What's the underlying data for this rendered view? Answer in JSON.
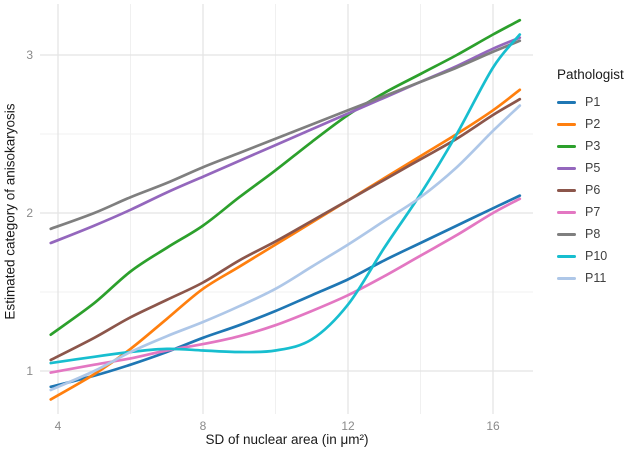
{
  "figure": {
    "x_axis_title": "SD of nuclear area (in μm²)",
    "y_axis_title": "Estimated category of anisokaryosis",
    "legend_title": "Pathologist"
  },
  "colors": {
    "grid_major": "#e4e4e4",
    "grid_minor": "#f0f0f0",
    "tick_text": "#8a8a8a",
    "title_text": "#1a1a1a",
    "background": "#ffffff"
  },
  "chart_data": {
    "type": "line",
    "title": "",
    "xlabel": "SD of nuclear area (in μm²)",
    "ylabel": "Estimated category of anisokaryosis",
    "legend_title": "Pathologist",
    "legend_position": "right",
    "grid": true,
    "xlim": [
      3.5,
      17.1
    ],
    "ylim": [
      0.73,
      3.33
    ],
    "x_ticks": [
      4,
      8,
      12,
      16
    ],
    "y_ticks": [
      1,
      2,
      3
    ],
    "x_minor_ticks": [
      6,
      10,
      14
    ],
    "y_minor_ticks": [
      1.5,
      2.5
    ],
    "x": [
      3.8,
      5,
      6,
      7,
      8,
      9,
      10,
      11,
      12,
      13,
      14,
      15,
      16,
      16.74
    ],
    "series": [
      {
        "name": "P1",
        "color": "#1f77b4",
        "values": [
          0.9,
          0.97,
          1.04,
          1.12,
          1.21,
          1.29,
          1.38,
          1.48,
          1.58,
          1.7,
          1.81,
          1.92,
          2.03,
          2.11
        ]
      },
      {
        "name": "P2",
        "color": "#ff7f0e",
        "values": [
          0.82,
          0.98,
          1.14,
          1.33,
          1.52,
          1.66,
          1.8,
          1.94,
          2.08,
          2.22,
          2.36,
          2.5,
          2.65,
          2.78
        ]
      },
      {
        "name": "P3",
        "color": "#2ca02c",
        "values": [
          1.23,
          1.43,
          1.63,
          1.78,
          1.92,
          2.1,
          2.27,
          2.45,
          2.62,
          2.76,
          2.88,
          3.0,
          3.13,
          3.22
        ]
      },
      {
        "name": "P5",
        "color": "#9467bd",
        "values": [
          1.81,
          1.92,
          2.02,
          2.13,
          2.23,
          2.33,
          2.43,
          2.53,
          2.63,
          2.73,
          2.83,
          2.93,
          3.04,
          3.11
        ]
      },
      {
        "name": "P6",
        "color": "#8c564b",
        "values": [
          1.07,
          1.21,
          1.34,
          1.45,
          1.56,
          1.7,
          1.82,
          1.95,
          2.08,
          2.21,
          2.34,
          2.47,
          2.62,
          2.72
        ]
      },
      {
        "name": "P7",
        "color": "#e377c2",
        "values": [
          0.99,
          1.04,
          1.08,
          1.13,
          1.17,
          1.22,
          1.29,
          1.38,
          1.48,
          1.6,
          1.73,
          1.86,
          2.0,
          2.09
        ]
      },
      {
        "name": "P8",
        "color": "#7f7f7f",
        "values": [
          1.9,
          2.0,
          2.1,
          2.19,
          2.29,
          2.38,
          2.47,
          2.56,
          2.65,
          2.74,
          2.83,
          2.92,
          3.02,
          3.09
        ]
      },
      {
        "name": "P10",
        "color": "#17becf",
        "values": [
          1.05,
          1.09,
          1.12,
          1.14,
          1.13,
          1.12,
          1.13,
          1.2,
          1.42,
          1.78,
          2.12,
          2.5,
          2.92,
          3.13
        ]
      },
      {
        "name": "P11",
        "color": "#aec7e8",
        "values": [
          0.88,
          1.0,
          1.12,
          1.22,
          1.31,
          1.41,
          1.52,
          1.66,
          1.8,
          1.95,
          2.1,
          2.29,
          2.52,
          2.68
        ]
      }
    ]
  }
}
